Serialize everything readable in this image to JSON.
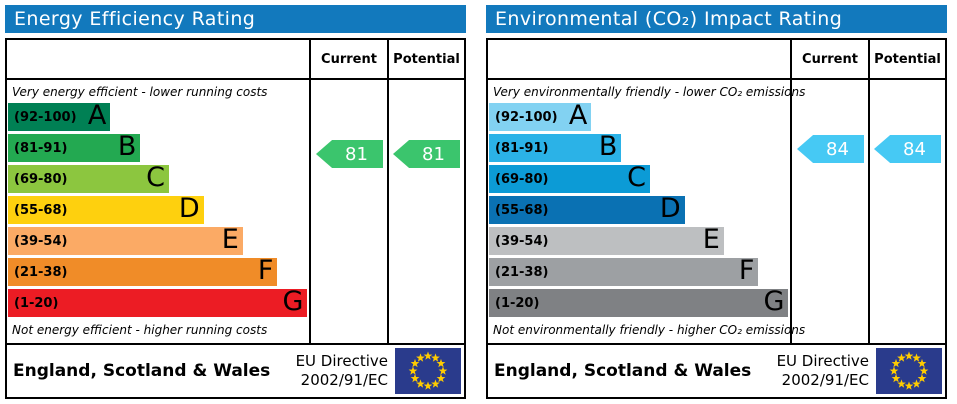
{
  "theme": {
    "header_bg": "#1279bd",
    "border": "#000000",
    "flag_bg": "#2a3b8c",
    "flag_star": "#ffcc00"
  },
  "columns": {
    "current": "Current",
    "potential": "Potential"
  },
  "footer": {
    "region": "England, Scotland & Wales",
    "directive_line1": "EU Directive",
    "directive_line2": "2002/91/EC"
  },
  "panels": [
    {
      "title": "Energy Efficiency Rating",
      "top_caption": "Very energy efficient - lower running costs",
      "bottom_caption": "Not energy efficient - higher running costs",
      "bands": [
        {
          "letter": "A",
          "range": "(92-100)",
          "color": "#008054",
          "width": "34%"
        },
        {
          "letter": "B",
          "range": "(81-91)",
          "color": "#23a951",
          "width": "44%"
        },
        {
          "letter": "C",
          "range": "(69-80)",
          "color": "#8cc63f",
          "width": "53.5%"
        },
        {
          "letter": "D",
          "range": "(55-68)",
          "color": "#fed00e",
          "width": "65%"
        },
        {
          "letter": "E",
          "range": "(39-54)",
          "color": "#fbaa65",
          "width": "78%"
        },
        {
          "letter": "F",
          "range": "(21-38)",
          "color": "#f08c28",
          "width": "89.5%"
        },
        {
          "letter": "G",
          "range": "(1-20)",
          "color": "#ec1c24",
          "width": "99.5%"
        }
      ],
      "current": {
        "value": 81,
        "color": "#3bc56d"
      },
      "potential": {
        "value": 81,
        "color": "#3bc56d"
      }
    },
    {
      "title": "Environmental (CO₂) Impact Rating",
      "top_caption": "Very environmentally friendly - lower CO₂ emissions",
      "bottom_caption": "Not environmentally friendly - higher CO₂ emissions",
      "bands": [
        {
          "letter": "A",
          "range": "(92-100)",
          "color": "#82d2f2",
          "width": "34%"
        },
        {
          "letter": "B",
          "range": "(81-91)",
          "color": "#2bb2e7",
          "width": "44%"
        },
        {
          "letter": "C",
          "range": "(69-80)",
          "color": "#0c9bd6",
          "width": "53.5%"
        },
        {
          "letter": "D",
          "range": "(55-68)",
          "color": "#0a71b3",
          "width": "65%"
        },
        {
          "letter": "E",
          "range": "(39-54)",
          "color": "#bdbfc1",
          "width": "78%"
        },
        {
          "letter": "F",
          "range": "(21-38)",
          "color": "#9da0a3",
          "width": "89.5%"
        },
        {
          "letter": "G",
          "range": "(1-20)",
          "color": "#7f8184",
          "width": "99.5%"
        }
      ],
      "current": {
        "value": 84,
        "color": "#46c9f4"
      },
      "potential": {
        "value": 84,
        "color": "#46c9f4"
      }
    }
  ],
  "chart_data": [
    {
      "type": "bar",
      "title": "Energy Efficiency Rating",
      "categories": [
        "A (92-100)",
        "B (81-91)",
        "C (69-80)",
        "D (55-68)",
        "E (39-54)",
        "F (21-38)",
        "G (1-20)"
      ],
      "current": 81,
      "potential": 81,
      "current_band": "B",
      "potential_band": "B",
      "top_label": "Very energy efficient - lower running costs",
      "bottom_label": "Not energy efficient - higher running costs",
      "footer": "England, Scotland & Wales",
      "directive": "EU Directive 2002/91/EC"
    },
    {
      "type": "bar",
      "title": "Environmental (CO₂) Impact Rating",
      "categories": [
        "A (92-100)",
        "B (81-91)",
        "C (69-80)",
        "D (55-68)",
        "E (39-54)",
        "F (21-38)",
        "G (1-20)"
      ],
      "current": 84,
      "potential": 84,
      "current_band": "B",
      "potential_band": "B",
      "top_label": "Very environmentally friendly - lower CO₂ emissions",
      "bottom_label": "Not environmentally friendly - higher CO₂ emissions",
      "footer": "England, Scotland & Wales",
      "directive": "EU Directive 2002/91/EC"
    }
  ]
}
